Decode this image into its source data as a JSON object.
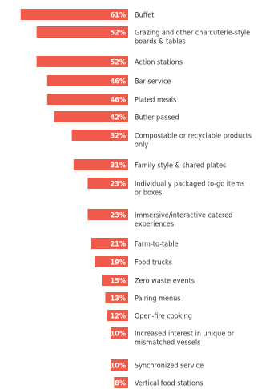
{
  "chart_data": {
    "type": "bar",
    "orientation": "horizontal",
    "title": "",
    "colors": {
      "bar": "#f05a4a",
      "value_text": "#ffffff",
      "label_text": "#333333"
    },
    "categories": [
      [
        "Buffet"
      ],
      [
        "Grazing and other charcuterie-style",
        "boards & tables"
      ],
      [
        "Action stations"
      ],
      [
        "Bar service"
      ],
      [
        "Plated meals"
      ],
      [
        "Butler passed"
      ],
      [
        "Compostable or recyclable products",
        "only"
      ],
      [
        "Family style & shared plates"
      ],
      [
        "Individually packaged to-go items",
        "or boxes"
      ],
      [
        "Immersive/interactive catered",
        "experiences"
      ],
      [
        "Farm-to-table"
      ],
      [
        "Food trucks"
      ],
      [
        "Zero waste events"
      ],
      [
        "Pairing menus"
      ],
      [
        "Open-fire cooking"
      ],
      [
        "Increased interest in unique or",
        "mismatched vessels"
      ],
      [
        "Synchronized service"
      ],
      [
        "Vertical food stations"
      ]
    ],
    "values": [
      61,
      52,
      52,
      46,
      46,
      42,
      32,
      31,
      23,
      23,
      21,
      19,
      15,
      13,
      12,
      10,
      10,
      8
    ],
    "value_labels": [
      "61%",
      "52%",
      "52%",
      "46%",
      "46%",
      "42%",
      "32%",
      "31%",
      "23%",
      "23%",
      "21%",
      "19%",
      "15%",
      "13%",
      "12%",
      "10%",
      "10%",
      "8%"
    ]
  }
}
